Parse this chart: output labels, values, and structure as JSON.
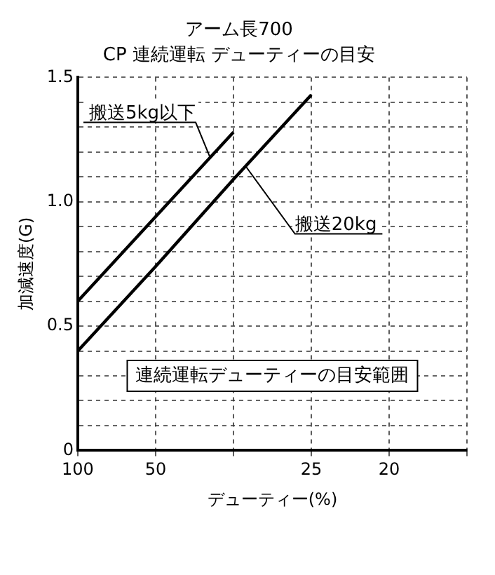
{
  "chart_data": {
    "type": "line",
    "title": "アーム長700",
    "subtitle": "CP 連続運転 デューティーの目安",
    "xlabel": "デューティー(%)",
    "ylabel": "加減速度(G)",
    "categories": [
      "100",
      "50",
      null,
      "25",
      "20",
      null
    ],
    "series": [
      {
        "name": "搬送5kg以下",
        "color": "#000000",
        "values": [
          0.6,
          0.94,
          1.28,
          null,
          null,
          null
        ]
      },
      {
        "name": "搬送20kg",
        "color": "#000000",
        "values": [
          0.4,
          0.74,
          1.09,
          1.43,
          null,
          null
        ]
      }
    ],
    "ylim": [
      0,
      1.5
    ],
    "yticks": [
      0,
      {
        "value": 0.1,
        "label": null
      },
      {
        "value": 0.2,
        "label": null
      },
      {
        "value": 0.3,
        "label": null
      },
      {
        "value": 0.4,
        "label": null
      },
      0.5,
      {
        "value": 0.6,
        "label": null
      },
      {
        "value": 0.7,
        "label": null
      },
      {
        "value": 0.8,
        "label": null
      },
      {
        "value": 0.9,
        "label": null
      },
      {
        "value": 1,
        "label": "1.0"
      },
      {
        "value": 1.1,
        "label": null
      },
      {
        "value": 1.2,
        "label": null
      },
      {
        "value": 1.3,
        "label": null
      },
      {
        "value": 1.4,
        "label": null
      },
      1.5
    ],
    "annotations": [
      "連続運転デューティーの目安範囲"
    ],
    "grid": true,
    "legend": false,
    "marker": "none",
    "line_style": "solid"
  }
}
